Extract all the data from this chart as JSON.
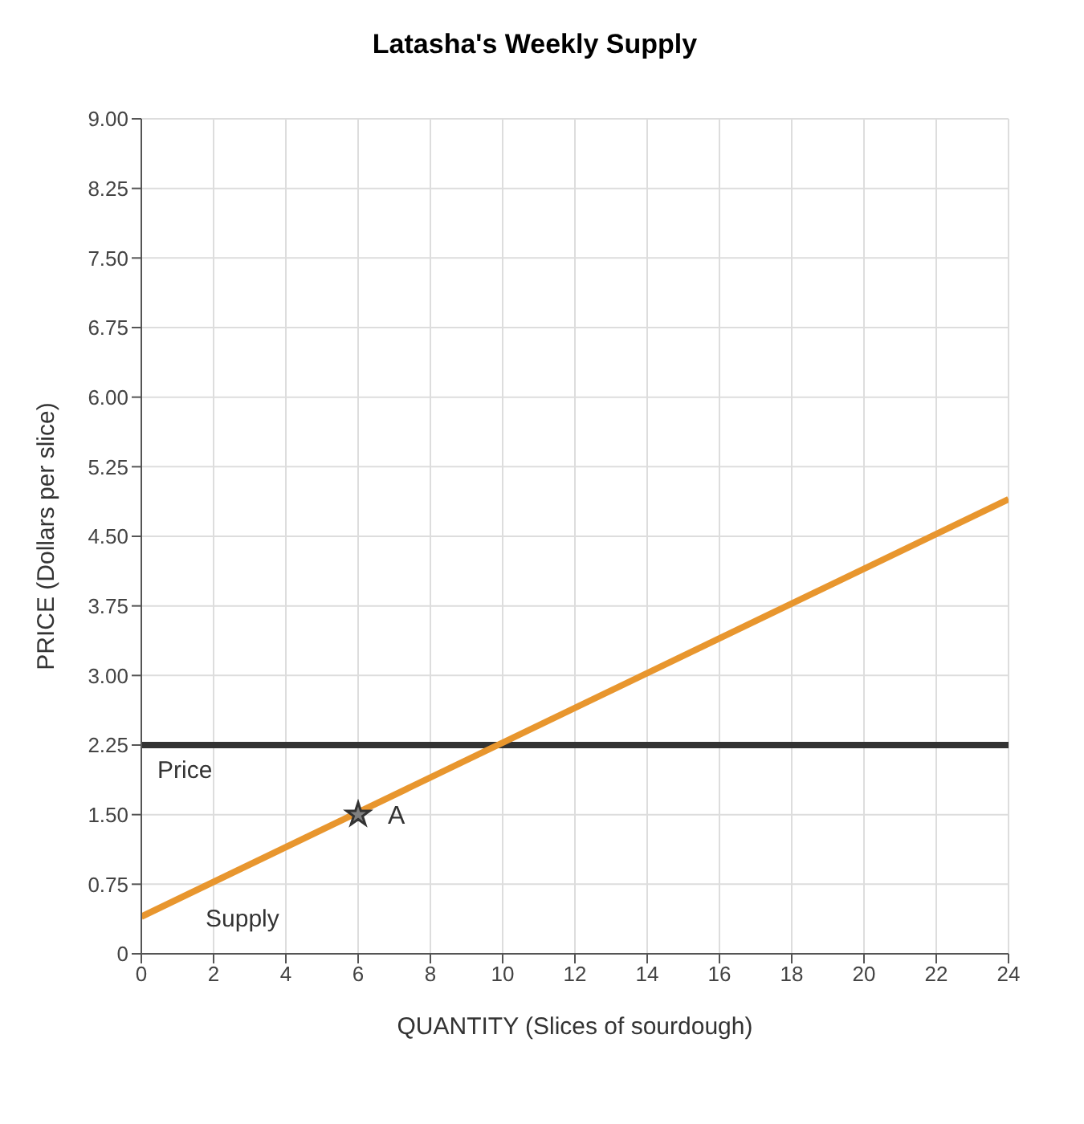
{
  "chart_data": {
    "type": "line",
    "title": "Latasha's Weekly Supply",
    "xlabel": "QUANTITY (Slices of sourdough)",
    "ylabel": "PRICE (Dollars per slice)",
    "xlim": [
      0,
      24
    ],
    "xticks": [
      0,
      2,
      4,
      6,
      8,
      10,
      12,
      14,
      16,
      18,
      20,
      22,
      24
    ],
    "ylim": [
      0,
      9
    ],
    "yticks": [
      0,
      0.75,
      {
        "value": 1.5,
        "label": "1.50"
      },
      2.25,
      {
        "value": 3,
        "label": "3.00"
      },
      3.75,
      {
        "value": 4.5,
        "label": "4.50"
      },
      5.25,
      {
        "value": 6,
        "label": "6.00"
      },
      6.75,
      {
        "value": 7.5,
        "label": "7.50"
      },
      8.25,
      {
        "value": 9,
        "label": "9.00"
      }
    ],
    "grid": true,
    "legend": false,
    "series": [
      {
        "name": "Supply",
        "color": "#e8962e",
        "x": [
          0,
          24
        ],
        "values": [
          0.4,
          4.9
        ],
        "marker": "none",
        "line_style": "solid"
      },
      {
        "name": "A",
        "type": "scatter",
        "color": "#7f7f7f",
        "x": [
          6
        ],
        "values": [
          1.5
        ],
        "marker": "star"
      }
    ],
    "ref_lines": [
      {
        "axis": "y",
        "value": 2.25,
        "label": "Price",
        "color": "#333333",
        "line_style": "solid"
      }
    ]
  }
}
